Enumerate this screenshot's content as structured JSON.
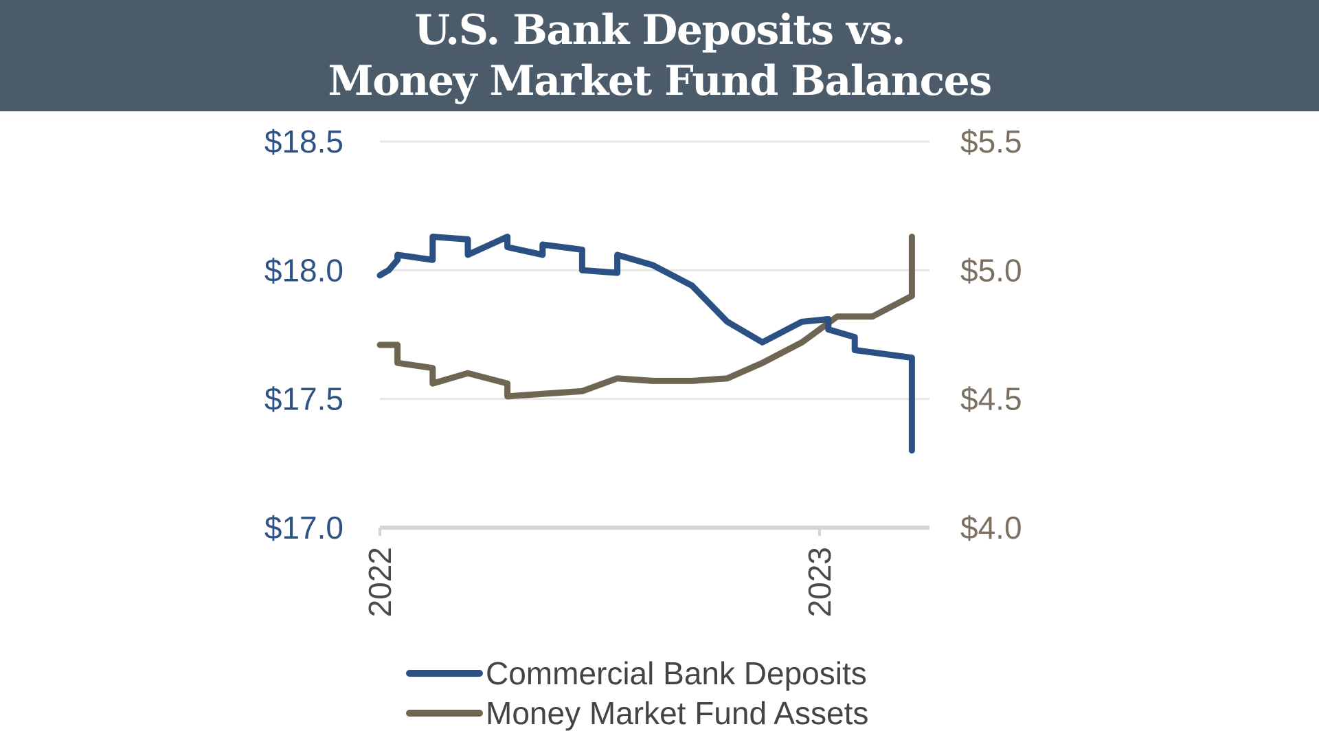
{
  "header": {
    "title_line1": "U.S. Bank Deposits vs.",
    "title_line2": "Money Market Fund Balances"
  },
  "colors": {
    "header_bg": "#4b5b69",
    "deposits": "#2b5083",
    "mmf": "#6f6553",
    "grid": "#e6e6e6",
    "axis": "#d4d4d4"
  },
  "chart_data": {
    "type": "line",
    "title": "U.S. Bank Deposits vs. Money Market Fund Balances",
    "x_ticks": [
      {
        "label": "2022",
        "x": 2022.0
      },
      {
        "label": "2023",
        "x": 2023.0
      }
    ],
    "x_range": [
      2022.0,
      2023.25
    ],
    "y_left": {
      "range": [
        17.0,
        18.5
      ],
      "ticks": [
        {
          "value": 17.0,
          "label": "$17.0"
        },
        {
          "value": 17.5,
          "label": "$17.5"
        },
        {
          "value": 18.0,
          "label": "$18.0"
        },
        {
          "value": 18.5,
          "label": "$18.5"
        }
      ]
    },
    "y_right": {
      "range": [
        4.0,
        5.5
      ],
      "ticks": [
        {
          "value": 4.0,
          "label": "$4.0"
        },
        {
          "value": 4.5,
          "label": "$4.5"
        },
        {
          "value": 5.0,
          "label": "$5.0"
        },
        {
          "value": 5.5,
          "label": "$5.5"
        }
      ]
    },
    "grid": true,
    "legend_position": "bottom",
    "series": [
      {
        "name": "Commercial Bank Deposits",
        "axis": "left",
        "points": [
          [
            2022.0,
            17.98
          ],
          [
            2022.02,
            18.0
          ],
          [
            2022.04,
            18.04
          ],
          [
            2022.04,
            18.06
          ],
          [
            2022.12,
            18.04
          ],
          [
            2022.12,
            18.13
          ],
          [
            2022.2,
            18.12
          ],
          [
            2022.2,
            18.06
          ],
          [
            2022.29,
            18.13
          ],
          [
            2022.29,
            18.09
          ],
          [
            2022.37,
            18.06
          ],
          [
            2022.37,
            18.1
          ],
          [
            2022.46,
            18.08
          ],
          [
            2022.46,
            18.0
          ],
          [
            2022.54,
            17.99
          ],
          [
            2022.54,
            18.06
          ],
          [
            2022.62,
            18.02
          ],
          [
            2022.71,
            17.94
          ],
          [
            2022.79,
            17.8
          ],
          [
            2022.87,
            17.72
          ],
          [
            2022.96,
            17.8
          ],
          [
            2023.02,
            17.81
          ],
          [
            2023.02,
            17.77
          ],
          [
            2023.08,
            17.74
          ],
          [
            2023.08,
            17.69
          ],
          [
            2023.21,
            17.66
          ],
          [
            2023.21,
            17.3
          ]
        ]
      },
      {
        "name": "Money Market Fund Assets",
        "axis": "right",
        "points": [
          [
            2022.0,
            4.71
          ],
          [
            2022.04,
            4.71
          ],
          [
            2022.04,
            4.64
          ],
          [
            2022.12,
            4.62
          ],
          [
            2022.12,
            4.56
          ],
          [
            2022.2,
            4.6
          ],
          [
            2022.29,
            4.56
          ],
          [
            2022.29,
            4.51
          ],
          [
            2022.37,
            4.52
          ],
          [
            2022.46,
            4.53
          ],
          [
            2022.54,
            4.58
          ],
          [
            2022.62,
            4.57
          ],
          [
            2022.71,
            4.57
          ],
          [
            2022.79,
            4.58
          ],
          [
            2022.87,
            4.64
          ],
          [
            2022.96,
            4.72
          ],
          [
            2023.04,
            4.82
          ],
          [
            2023.12,
            4.82
          ],
          [
            2023.21,
            4.9
          ],
          [
            2023.21,
            5.13
          ]
        ]
      }
    ]
  }
}
